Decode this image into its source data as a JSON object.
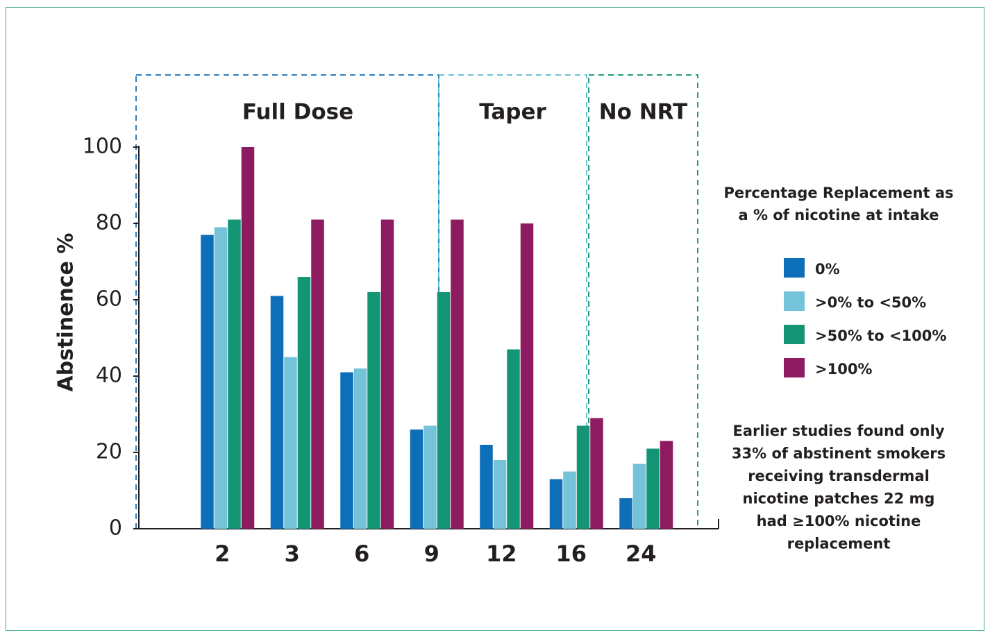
{
  "chart_data": {
    "type": "bar",
    "ylabel": "Abstinence %",
    "categories": [
      "2",
      "3",
      "6",
      "9",
      "12",
      "16",
      "24"
    ],
    "series": [
      {
        "name": "0%",
        "color": "#0d6fb8",
        "values": [
          77,
          61,
          41,
          26,
          22,
          13,
          8
        ]
      },
      {
        "name": ">0% to <50%",
        "color": "#74c3d8",
        "values": [
          79,
          45,
          42,
          27,
          18,
          15,
          17
        ]
      },
      {
        "name": ">50% to <100%",
        "color": "#149576",
        "values": [
          81,
          66,
          62,
          62,
          47,
          27,
          21
        ]
      },
      {
        "name": ">100%",
        "color": "#8c1b5f",
        "values": [
          100,
          81,
          81,
          81,
          80,
          29,
          23
        ]
      }
    ],
    "ylim": [
      0,
      100
    ],
    "yticks": [
      0,
      20,
      40,
      60,
      80,
      100
    ],
    "phases": [
      {
        "label": "Full Dose",
        "color": "#2a7fc0"
      },
      {
        "label": "Taper",
        "color": "#6cc0d4"
      },
      {
        "label": "No NRT",
        "color": "#1f9a78"
      }
    ],
    "legend_title": [
      "Percentage Replacement as",
      "a % of nicotine at intake"
    ],
    "note": [
      "Earlier studies found only",
      "33% of abstinent smokers",
      "receiving transdermal",
      "nicotine patches 22 mg",
      "had ≥100% nicotine",
      "replacement"
    ]
  }
}
